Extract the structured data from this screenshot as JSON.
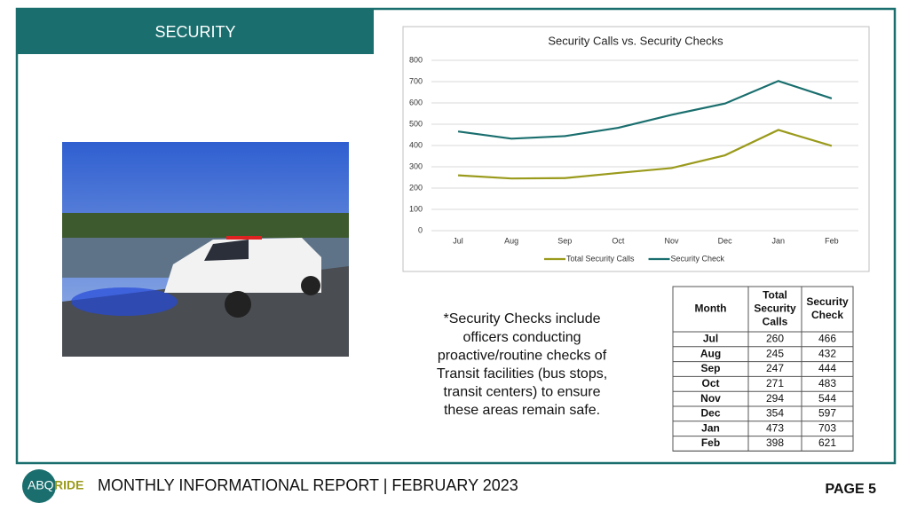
{
  "header": {
    "title": "SECURITY"
  },
  "chart_data": {
    "type": "line",
    "title": "Security Calls vs. Security Checks",
    "categories": [
      "Jul",
      "Aug",
      "Sep",
      "Oct",
      "Nov",
      "Dec",
      "Jan",
      "Feb"
    ],
    "series": [
      {
        "name": "Total Security Calls",
        "color": "#9a9a1c",
        "values": [
          260,
          245,
          247,
          271,
          294,
          354,
          473,
          398
        ]
      },
      {
        "name": "Security Check",
        "color": "#1a6e6e",
        "values": [
          466,
          432,
          444,
          483,
          544,
          597,
          703,
          621
        ]
      }
    ],
    "ylim": [
      0,
      800
    ],
    "yticks": [
      0,
      100,
      200,
      300,
      400,
      500,
      600,
      700,
      800
    ],
    "grid": true,
    "legend": "bottom"
  },
  "note": {
    "lines": [
      "*Security Checks include",
      "officers conducting",
      "proactive/routine checks of",
      "Transit facilities (bus stops,",
      "transit centers) to ensure",
      "these areas remain safe."
    ]
  },
  "table": {
    "header": [
      "Month",
      [
        "Total",
        "Security",
        "Calls"
      ],
      [
        "Security",
        "Check"
      ]
    ],
    "rows": [
      [
        "Jul",
        260,
        466
      ],
      [
        "Aug",
        245,
        432
      ],
      [
        "Sep",
        247,
        444
      ],
      [
        "Oct",
        271,
        483
      ],
      [
        "Nov",
        294,
        544
      ],
      [
        "Dec",
        354,
        597
      ],
      [
        "Jan",
        473,
        703
      ],
      [
        "Feb",
        398,
        621
      ]
    ]
  },
  "footer": {
    "logo_left": "ABQ",
    "logo_right": "RIDE",
    "text": "MONTHLY INFORMATIONAL REPORT | FEBRUARY 2023",
    "page": "PAGE 5"
  }
}
